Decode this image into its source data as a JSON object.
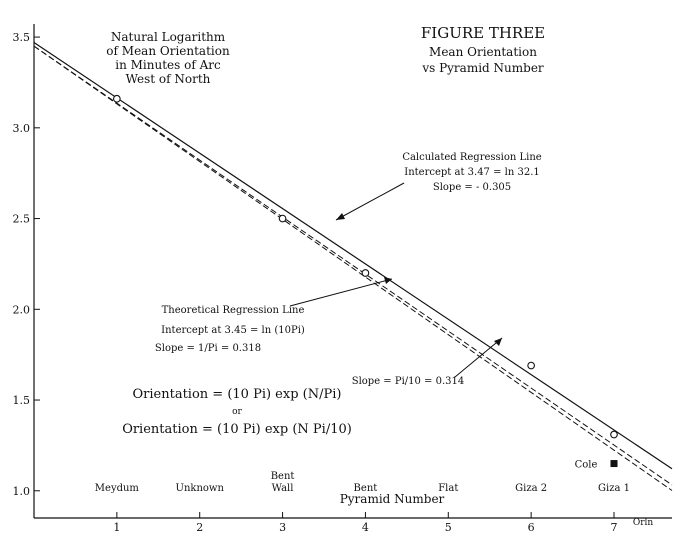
{
  "chart_data": {
    "type": "line",
    "title": "FIGURE THREE",
    "subtitle": [
      "Mean Orientation",
      "vs Pyramid Number"
    ],
    "ylabel": [
      "Natural Logarithm",
      "of Mean Orientation",
      "in Minutes of Arc",
      "West of North"
    ],
    "xlabel": "Pyramid Number",
    "x_unit_label": "Orln",
    "xlim": [
      0,
      7.7
    ],
    "ylim": [
      0.85,
      3.55
    ],
    "x_ticks": [
      1,
      2,
      3,
      4,
      5,
      6,
      7
    ],
    "y_ticks": [
      "1.0",
      "1.5",
      "2.0",
      "2.5",
      "3.0",
      "3.5"
    ],
    "pyramid_names": [
      {
        "x": 1,
        "lines": [
          "Meydum"
        ]
      },
      {
        "x": 2,
        "lines": [
          "Unknown"
        ]
      },
      {
        "x": 3,
        "lines": [
          "Bent",
          "Wall"
        ]
      },
      {
        "x": 4,
        "lines": [
          "Bent"
        ]
      },
      {
        "x": 5,
        "lines": [
          "Flat"
        ]
      },
      {
        "x": 6,
        "lines": [
          "Giza 2"
        ]
      },
      {
        "x": 7,
        "lines": [
          "Giza 1"
        ]
      }
    ],
    "observed_points": [
      {
        "x": 1,
        "y": 3.16
      },
      {
        "x": 3,
        "y": 2.5
      },
      {
        "x": 4,
        "y": 2.2
      },
      {
        "x": 6,
        "y": 1.69
      },
      {
        "x": 7,
        "y": 1.31
      }
    ],
    "special_point": {
      "x": 7,
      "y": 1.15,
      "label": "Cole"
    },
    "lines": [
      {
        "style": "solid",
        "intercept": 3.47,
        "slope": -0.305
      },
      {
        "style": "dashed",
        "intercept": 3.45,
        "slope": -0.318
      },
      {
        "style": "dashed",
        "intercept": 3.45,
        "slope": -0.314
      }
    ],
    "annotations": {
      "calculated": [
        "Calculated Regression Line",
        "Intercept at 3.47 = ln 32.1",
        "Slope = - 0.305"
      ],
      "theoretical": [
        "Theoretical Regression Line",
        "Intercept at 3.45 = ln (10Pi)",
        "Slope = 1/Pi = 0.318"
      ],
      "pi10": "Slope = Pi/10 = 0.314"
    },
    "formulas": [
      "Orientation = (10 Pi) exp (N/Pi)",
      "or",
      "Orientation = (10 Pi) exp (N Pi/10)"
    ]
  }
}
